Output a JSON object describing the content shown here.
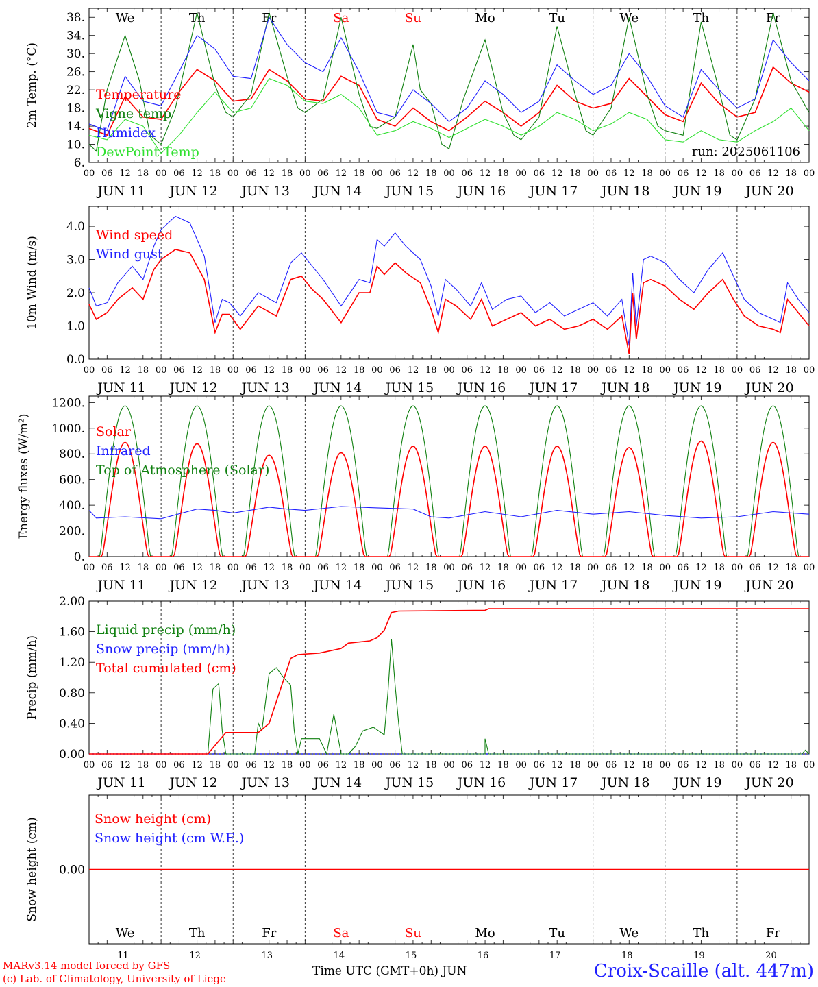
{
  "footer": {
    "model_line": "MARv3.14 model forced by GFS",
    "lab_line": "(c) Lab. of Climatology, University of Liege",
    "xaxis_title": "Time UTC (GMT+0h) JUN",
    "station": "Croix-Scaille (alt. 447m)"
  },
  "colors": {
    "red": "#ff0000",
    "blue": "#2020ff",
    "green": "#108010",
    "lightgreen": "#30e030",
    "black": "#000000"
  },
  "hour_ticks": [
    "00",
    "06",
    "12",
    "18"
  ],
  "last_hour_tick": "00",
  "dates": [
    "JUN 11",
    "JUN 12",
    "JUN 13",
    "JUN 14",
    "JUN 15",
    "JUN 16",
    "JUN 17",
    "JUN 18",
    "JUN 19",
    "JUN 20"
  ],
  "weekdays": [
    {
      "label": "We",
      "color": "#000000"
    },
    {
      "label": "Th",
      "color": "#000000"
    },
    {
      "label": "Fr",
      "color": "#000000"
    },
    {
      "label": "Sa",
      "color": "#ff0000"
    },
    {
      "label": "Su",
      "color": "#ff0000"
    },
    {
      "label": "Mo",
      "color": "#000000"
    },
    {
      "label": "Tu",
      "color": "#000000"
    },
    {
      "label": "We",
      "color": "#000000"
    },
    {
      "label": "Th",
      "color": "#000000"
    },
    {
      "label": "Fr",
      "color": "#000000"
    }
  ],
  "day_numbers": [
    "11",
    "12",
    "13",
    "14",
    "15",
    "16",
    "17",
    "18",
    "19",
    "20"
  ],
  "chart_data": [
    {
      "type": "line",
      "title": "",
      "ylabel": "2m Temp. (°C)",
      "ylim": [
        6,
        40
      ],
      "ytick_labels": [
        "6.",
        "10.",
        "14.",
        "18.",
        "22.",
        "26.",
        "30.",
        "34.",
        "38."
      ],
      "ytick_values": [
        6,
        10,
        14,
        18,
        22,
        26,
        30,
        34,
        38
      ],
      "annotation": "run: 2025061106",
      "x_unit": "days since 2025-06-11 00 UTC",
      "series": [
        {
          "name": "Temperature",
          "color": "#ff0000",
          "x": [
            0,
            0.25,
            0.5,
            0.75,
            1,
            1.25,
            1.5,
            1.75,
            2,
            2.25,
            2.5,
            2.75,
            3,
            3.25,
            3.5,
            3.75,
            4,
            4.25,
            4.5,
            4.75,
            5,
            5.25,
            5.5,
            5.75,
            6,
            6.25,
            6.5,
            6.75,
            7,
            7.25,
            7.5,
            7.75,
            8,
            8.25,
            8.5,
            8.75,
            9,
            9.25,
            9.5,
            9.75,
            10
          ],
          "values": [
            13.5,
            12,
            20.5,
            16,
            15.5,
            21.5,
            26.5,
            24,
            19.5,
            20,
            26.5,
            24,
            20,
            19.5,
            25,
            23,
            15.5,
            14,
            18,
            15,
            13,
            16,
            19.5,
            17,
            14,
            17,
            23,
            19.5,
            18,
            19,
            24.5,
            20.5,
            16.5,
            15,
            23.5,
            19,
            16,
            17,
            27,
            23.5,
            21.5
          ]
        },
        {
          "name": "Vigne temp",
          "color": "#108010",
          "x": [
            0,
            0.1,
            0.25,
            0.5,
            0.7,
            0.85,
            1,
            1.2,
            1.5,
            1.75,
            1.9,
            2,
            2.25,
            2.5,
            2.75,
            2.9,
            3,
            3.25,
            3.5,
            3.75,
            3.9,
            4,
            4.25,
            4.5,
            4.6,
            4.75,
            4.9,
            5,
            5.2,
            5.5,
            5.75,
            5.9,
            6,
            6.25,
            6.5,
            6.75,
            6.9,
            7,
            7.25,
            7.5,
            7.75,
            7.9,
            8,
            8.25,
            8.5,
            8.75,
            8.9,
            9,
            9.25,
            9.5,
            9.75,
            10
          ],
          "values": [
            10,
            8.5,
            22,
            34,
            24,
            12,
            10,
            18,
            39,
            23,
            17,
            16,
            21,
            39,
            25,
            18,
            17,
            20,
            38,
            21,
            14,
            13.5,
            16,
            32,
            22,
            19,
            10,
            9,
            20,
            33,
            17,
            12,
            11,
            16,
            36,
            21,
            13,
            12,
            18,
            38,
            21,
            14,
            13,
            12,
            37,
            22,
            12,
            11,
            20,
            39,
            24,
            17
          ]
        },
        {
          "name": "Humidex",
          "color": "#2020ff",
          "x": [
            0,
            0.25,
            0.5,
            0.75,
            1,
            1.25,
            1.5,
            1.75,
            2,
            2.25,
            2.5,
            2.75,
            3,
            3.25,
            3.5,
            3.75,
            4,
            4.25,
            4.5,
            4.75,
            5,
            5.25,
            5.5,
            5.75,
            6,
            6.25,
            6.5,
            6.75,
            7,
            7.25,
            7.5,
            7.75,
            8,
            8.25,
            8.5,
            8.75,
            9,
            9.25,
            9.5,
            9.75,
            10
          ],
          "values": [
            14.5,
            13,
            25,
            19.5,
            18.5,
            26,
            34,
            31,
            25,
            24.5,
            38,
            32,
            28,
            26,
            33.5,
            26,
            17,
            16,
            22,
            19,
            15,
            18,
            24,
            21,
            17,
            19.5,
            27.5,
            24,
            21,
            23,
            30,
            25,
            18.5,
            16,
            26.5,
            22,
            18,
            20,
            33,
            28,
            24
          ]
        },
        {
          "name": "DewPoint Temp",
          "color": "#30e030",
          "x": [
            0,
            0.25,
            0.5,
            0.75,
            1,
            1.25,
            1.5,
            1.75,
            2,
            2.25,
            2.5,
            2.75,
            3,
            3.25,
            3.5,
            3.75,
            4,
            4.25,
            4.5,
            4.75,
            5,
            5.25,
            5.5,
            5.75,
            6,
            6.25,
            6.5,
            6.75,
            7,
            7.25,
            7.5,
            7.75,
            8,
            8.25,
            8.5,
            8.75,
            9,
            9.25,
            9.5,
            9.75,
            10
          ],
          "values": [
            12,
            11,
            15.5,
            14,
            8,
            12,
            17,
            21.5,
            17,
            18,
            24.5,
            23,
            19.5,
            19,
            21,
            18,
            12,
            13,
            15,
            13.5,
            11.5,
            13.5,
            15.5,
            14,
            12,
            14,
            17,
            15.5,
            13,
            14.5,
            17,
            15.5,
            11,
            10.5,
            13,
            11,
            10.5,
            13,
            15,
            18,
            13
          ]
        }
      ]
    },
    {
      "type": "line",
      "title": "",
      "ylabel": "10m Wind (m/s)",
      "ylim": [
        0,
        4.6
      ],
      "ytick_labels": [
        "0.0",
        "1.0",
        "2.0",
        "3.0",
        "4.0"
      ],
      "ytick_values": [
        0,
        1,
        2,
        3,
        4
      ],
      "x_unit": "days since 2025-06-11 00 UTC",
      "series": [
        {
          "name": "Wind speed",
          "color": "#ff0000",
          "x": [
            0,
            0.1,
            0.25,
            0.4,
            0.6,
            0.75,
            0.9,
            1,
            1.2,
            1.4,
            1.6,
            1.75,
            1.85,
            1.95,
            2.1,
            2.35,
            2.6,
            2.8,
            2.95,
            3.1,
            3.25,
            3.5,
            3.75,
            3.9,
            4,
            4.1,
            4.25,
            4.4,
            4.6,
            4.75,
            4.85,
            4.95,
            5.1,
            5.3,
            5.45,
            5.6,
            5.8,
            6,
            6.2,
            6.4,
            6.6,
            6.8,
            7,
            7.2,
            7.4,
            7.5,
            7.55,
            7.6,
            7.7,
            7.8,
            8,
            8.2,
            8.4,
            8.6,
            8.8,
            8.95,
            9.1,
            9.3,
            9.5,
            9.6,
            9.7,
            9.85,
            10
          ],
          "values": [
            1.65,
            1.2,
            1.4,
            1.8,
            2.15,
            1.8,
            2.7,
            3.0,
            3.3,
            3.2,
            2.4,
            0.8,
            1.35,
            1.35,
            0.9,
            1.6,
            1.3,
            2.4,
            2.5,
            2.1,
            1.8,
            1.1,
            2.0,
            2.0,
            2.8,
            2.55,
            2.9,
            2.6,
            2.3,
            1.5,
            0.8,
            1.8,
            1.6,
            1.2,
            1.8,
            1.0,
            1.2,
            1.4,
            1.0,
            1.2,
            0.9,
            1.0,
            1.2,
            0.9,
            1.3,
            0.15,
            2.0,
            0.6,
            2.3,
            2.4,
            2.2,
            1.8,
            1.5,
            2.0,
            2.4,
            1.8,
            1.3,
            1.0,
            0.9,
            0.8,
            1.8,
            1.4,
            1.0
          ]
        },
        {
          "name": "Wind gust",
          "color": "#2020ff",
          "x": [
            0,
            0.1,
            0.25,
            0.4,
            0.6,
            0.75,
            0.9,
            1,
            1.2,
            1.4,
            1.6,
            1.75,
            1.85,
            1.95,
            2.1,
            2.35,
            2.6,
            2.8,
            2.95,
            3.1,
            3.25,
            3.5,
            3.75,
            3.9,
            4,
            4.1,
            4.25,
            4.4,
            4.6,
            4.75,
            4.85,
            4.95,
            5.1,
            5.3,
            5.45,
            5.6,
            5.8,
            6,
            6.2,
            6.4,
            6.6,
            6.8,
            7,
            7.2,
            7.4,
            7.5,
            7.55,
            7.6,
            7.7,
            7.8,
            8,
            8.2,
            8.4,
            8.6,
            8.8,
            8.95,
            9.1,
            9.3,
            9.5,
            9.6,
            9.7,
            9.85,
            10
          ],
          "values": [
            2.15,
            1.6,
            1.7,
            2.3,
            2.8,
            2.4,
            3.4,
            3.9,
            4.3,
            4.1,
            3.1,
            1.1,
            1.8,
            1.7,
            1.3,
            2.0,
            1.7,
            2.9,
            3.2,
            2.8,
            2.4,
            1.6,
            2.4,
            2.3,
            3.6,
            3.4,
            3.8,
            3.4,
            3.0,
            2.2,
            1.3,
            2.4,
            2.1,
            1.6,
            2.3,
            1.5,
            1.8,
            1.9,
            1.4,
            1.7,
            1.3,
            1.5,
            1.7,
            1.3,
            1.8,
            0.4,
            2.6,
            1.0,
            3.0,
            3.1,
            2.9,
            2.4,
            2.0,
            2.7,
            3.2,
            2.5,
            1.8,
            1.4,
            1.2,
            1.1,
            2.3,
            1.8,
            1.4
          ]
        }
      ]
    },
    {
      "type": "line",
      "title": "",
      "ylabel": "Energy fluxes (W/m²)",
      "ylim": [
        0,
        1250
      ],
      "ytick_labels": [
        "0.",
        "200.",
        "400.",
        "600.",
        "800.",
        "1000.",
        "1200."
      ],
      "ytick_values": [
        0,
        200,
        400,
        600,
        800,
        1000,
        1200
      ],
      "x_unit": "days since 2025-06-11 00 UTC",
      "series": [
        {
          "name": "Solar",
          "color": "#ff0000",
          "peaks": [
            890,
            880,
            790,
            810,
            860,
            860,
            860,
            850,
            900,
            890
          ]
        },
        {
          "name": "Infrared",
          "color": "#2020ff",
          "x": [
            0,
            0.1,
            0.5,
            1,
            1.5,
            1.75,
            2,
            2.5,
            2.75,
            3,
            3.5,
            4,
            4.5,
            4.75,
            5,
            5.5,
            6,
            6.5,
            7,
            7.5,
            8,
            8.5,
            9,
            9.5,
            10
          ],
          "values": [
            360,
            300,
            310,
            295,
            370,
            360,
            340,
            385,
            370,
            360,
            390,
            380,
            370,
            310,
            300,
            350,
            310,
            360,
            330,
            350,
            320,
            300,
            310,
            350,
            330
          ]
        },
        {
          "name": "Top of Atmosphere (Solar)",
          "color": "#108010",
          "peak": 1175
        }
      ]
    },
    {
      "type": "line",
      "title": "",
      "ylabel": "Precip (mm/h)",
      "ylim": [
        0,
        2.0
      ],
      "ytick_labels": [
        "0.00",
        "0.40",
        "0.80",
        "1.20",
        "1.60",
        "2.00"
      ],
      "ytick_values": [
        0,
        0.4,
        0.8,
        1.2,
        1.6,
        2.0
      ],
      "x_unit": "days since 2025-06-11 00 UTC",
      "series": [
        {
          "name": "Liquid precip (mm/h)",
          "color": "#108010",
          "x": [
            0,
            1.65,
            1.72,
            1.8,
            1.85,
            1.9,
            2.3,
            2.35,
            2.4,
            2.5,
            2.6,
            2.7,
            2.8,
            2.85,
            2.9,
            2.95,
            3.2,
            3.3,
            3.4,
            3.5,
            3.6,
            3.7,
            3.8,
            3.95,
            4.1,
            4.15,
            4.2,
            4.25,
            4.3,
            4.35,
            4.4,
            5.0,
            5.5,
            5.5,
            5.55,
            5.6,
            9.9,
            9.95,
            10
          ],
          "values": [
            0,
            0,
            0.85,
            0.92,
            0.3,
            0,
            0,
            0.4,
            0.3,
            1.05,
            1.13,
            1.0,
            0.9,
            0.3,
            0,
            0.2,
            0.2,
            0,
            0.52,
            0,
            0,
            0.1,
            0.3,
            0.35,
            0.25,
            0.8,
            1.5,
            0.9,
            0.4,
            0,
            0,
            0,
            0,
            0.2,
            0,
            0,
            0,
            0.05,
            0
          ]
        },
        {
          "name": "Snow precip (mm/h)",
          "color": "#2020ff",
          "x": [
            0,
            10
          ],
          "values": [
            0,
            0
          ]
        },
        {
          "name": "Total cumulated (cm)",
          "color": "#ff0000",
          "x": [
            0,
            1.65,
            1.9,
            2.35,
            2.5,
            2.8,
            2.9,
            3.2,
            3.5,
            3.6,
            3.9,
            4.0,
            4.1,
            4.2,
            4.3,
            5.5,
            5.55,
            9.5,
            10
          ],
          "values": [
            0,
            0,
            0.28,
            0.28,
            0.4,
            1.25,
            1.3,
            1.32,
            1.38,
            1.45,
            1.48,
            1.52,
            1.62,
            1.85,
            1.87,
            1.88,
            1.9,
            1.9,
            1.9
          ]
        }
      ]
    },
    {
      "type": "line",
      "title": "",
      "ylabel": "Snow height (cm)",
      "ylim": [
        -1,
        1
      ],
      "ytick_labels": [
        "0.00"
      ],
      "ytick_values": [
        0
      ],
      "x_unit": "days since 2025-06-11 00 UTC",
      "series": [
        {
          "name": "Snow height (cm)",
          "color": "#ff0000",
          "x": [
            0,
            10
          ],
          "values": [
            0,
            0
          ]
        },
        {
          "name": "Snow height (cm W.E.)",
          "color": "#2020ff",
          "x": [
            0,
            10
          ],
          "values": [
            0,
            0
          ]
        }
      ]
    }
  ]
}
